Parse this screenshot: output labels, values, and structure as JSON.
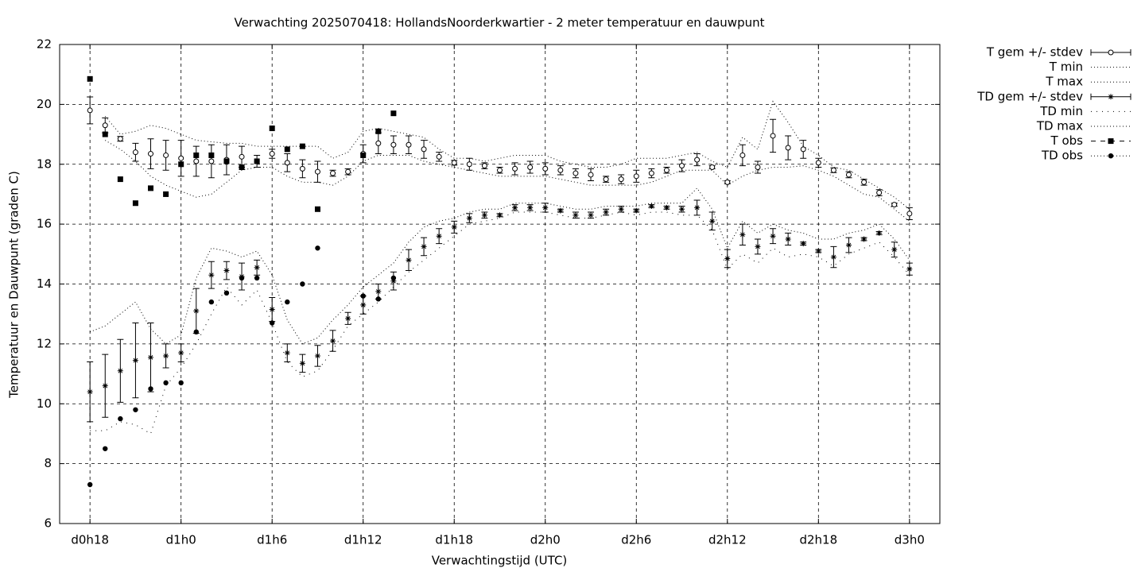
{
  "chart_data": {
    "type": "errorbar",
    "title": "Verwachting 2025070418: HollandsNoorderkwartier - 2 meter temperatuur en dauwpunt",
    "xlabel": "Verwachtingstijd (UTC)",
    "ylabel": "Temperatuur en Dauwpunt (graden C)",
    "xlim": [
      16,
      74
    ],
    "ylim": [
      6,
      22
    ],
    "xticks": [
      {
        "value": 18,
        "label": "d0h18"
      },
      {
        "value": 24,
        "label": "d1h0"
      },
      {
        "value": 30,
        "label": "d1h6"
      },
      {
        "value": 36,
        "label": "d1h12"
      },
      {
        "value": 42,
        "label": "d1h18"
      },
      {
        "value": 48,
        "label": "d2h0"
      },
      {
        "value": 54,
        "label": "d2h6"
      },
      {
        "value": 60,
        "label": "d2h12"
      },
      {
        "value": 66,
        "label": "d2h18"
      },
      {
        "value": 72,
        "label": "d3h0"
      }
    ],
    "yticks": [
      6,
      8,
      10,
      12,
      14,
      16,
      18,
      20,
      22
    ],
    "grid": true,
    "legend": "right-outside",
    "x": [
      18,
      19,
      20,
      21,
      22,
      23,
      24,
      25,
      26,
      27,
      28,
      29,
      30,
      31,
      32,
      33,
      34,
      35,
      36,
      37,
      38,
      39,
      40,
      41,
      42,
      43,
      44,
      45,
      46,
      47,
      48,
      49,
      50,
      51,
      52,
      53,
      54,
      55,
      56,
      57,
      58,
      59,
      60,
      61,
      62,
      63,
      64,
      65,
      66,
      67,
      68,
      69,
      70,
      71,
      72
    ],
    "series": [
      {
        "name": "T gem +/- stdev",
        "color": "#000000",
        "marker": "open-circle",
        "line": "none",
        "values": [
          19.8,
          19.3,
          18.85,
          18.4,
          18.35,
          18.3,
          18.2,
          18.1,
          18.1,
          18.15,
          18.25,
          18.1,
          18.35,
          18.05,
          17.85,
          17.75,
          17.7,
          17.75,
          18.35,
          18.7,
          18.65,
          18.65,
          18.5,
          18.25,
          18.05,
          18.0,
          17.95,
          17.8,
          17.85,
          17.9,
          17.85,
          17.8,
          17.7,
          17.65,
          17.5,
          17.5,
          17.6,
          17.7,
          17.8,
          17.95,
          18.15,
          17.9,
          17.4,
          18.3,
          17.9,
          18.95,
          18.55,
          18.5,
          18.05,
          17.8,
          17.65,
          17.4,
          17.05,
          16.65,
          16.35
        ],
        "errors": [
          0.45,
          0.25,
          0.08,
          0.3,
          0.5,
          0.5,
          0.6,
          0.5,
          0.55,
          0.5,
          0.35,
          0.2,
          0.15,
          0.3,
          0.3,
          0.35,
          0.1,
          0.1,
          0.3,
          0.35,
          0.3,
          0.3,
          0.3,
          0.15,
          0.08,
          0.2,
          0.1,
          0.1,
          0.2,
          0.2,
          0.2,
          0.15,
          0.15,
          0.2,
          0.1,
          0.15,
          0.2,
          0.15,
          0.1,
          0.2,
          0.2,
          0.05,
          0.05,
          0.35,
          0.2,
          0.55,
          0.4,
          0.3,
          0.15,
          0.08,
          0.1,
          0.1,
          0.1,
          0.05,
          0.2
        ]
      },
      {
        "name": "T min",
        "color": "#000000",
        "marker": "none",
        "line": "dotted",
        "values": [
          null,
          18.8,
          18.5,
          18.1,
          17.6,
          17.3,
          17.1,
          16.9,
          17.0,
          17.4,
          17.8,
          17.9,
          17.9,
          17.6,
          17.4,
          17.4,
          17.3,
          17.6,
          18.1,
          18.3,
          18.3,
          18.3,
          18.1,
          18.0,
          17.9,
          17.8,
          17.7,
          17.6,
          17.6,
          17.6,
          17.6,
          17.5,
          17.4,
          17.3,
          17.3,
          17.3,
          17.3,
          17.4,
          17.6,
          17.8,
          17.8,
          17.8,
          17.3,
          17.6,
          17.8,
          17.9,
          17.9,
          17.95,
          17.8,
          17.6,
          17.3,
          17.0,
          16.9,
          16.5,
          16.1
        ]
      },
      {
        "name": "T max",
        "color": "#000000",
        "marker": "none",
        "line": "dotted",
        "values": [
          null,
          19.6,
          19.0,
          19.1,
          19.3,
          19.2,
          19.0,
          18.8,
          18.75,
          18.7,
          18.7,
          18.6,
          18.6,
          18.6,
          18.6,
          18.6,
          18.2,
          18.4,
          19.1,
          19.2,
          19.1,
          19.0,
          18.9,
          18.5,
          18.2,
          18.2,
          18.1,
          18.2,
          18.3,
          18.3,
          18.3,
          18.1,
          18.0,
          17.9,
          17.9,
          18.0,
          18.2,
          18.2,
          18.2,
          18.3,
          18.4,
          18.1,
          17.9,
          18.9,
          18.5,
          20.1,
          19.4,
          18.6,
          18.3,
          17.9,
          17.8,
          17.5,
          17.2,
          16.9,
          16.5
        ]
      },
      {
        "name": "TD gem +/- stdev",
        "color": "#000000",
        "marker": "asterisk",
        "line": "none",
        "values": [
          10.4,
          10.6,
          11.1,
          11.45,
          11.55,
          11.6,
          11.7,
          13.1,
          14.3,
          14.45,
          14.25,
          14.55,
          13.15,
          11.7,
          11.35,
          11.6,
          12.1,
          12.85,
          13.3,
          13.75,
          14.1,
          14.8,
          15.25,
          15.6,
          15.9,
          16.2,
          16.3,
          16.3,
          16.55,
          16.55,
          16.55,
          16.45,
          16.3,
          16.3,
          16.4,
          16.5,
          16.45,
          16.6,
          16.55,
          16.5,
          16.55,
          16.1,
          14.85,
          15.65,
          15.25,
          15.6,
          15.5,
          15.35,
          15.1,
          14.9,
          15.3,
          15.5,
          15.7,
          15.15,
          14.5
        ],
        "errors": [
          1.0,
          1.05,
          1.05,
          1.25,
          1.15,
          0.4,
          0.3,
          0.75,
          0.45,
          0.3,
          0.45,
          0.25,
          0.4,
          0.3,
          0.3,
          0.35,
          0.35,
          0.2,
          0.3,
          0.25,
          0.3,
          0.35,
          0.3,
          0.25,
          0.2,
          0.15,
          0.1,
          0.05,
          0.1,
          0.1,
          0.15,
          0.05,
          0.1,
          0.1,
          0.1,
          0.1,
          0.05,
          0.05,
          0.05,
          0.1,
          0.25,
          0.3,
          0.3,
          0.35,
          0.25,
          0.25,
          0.2,
          0.05,
          0.05,
          0.35,
          0.25,
          0.05,
          0.05,
          0.25,
          0.2
        ]
      },
      {
        "name": "TD min",
        "color": "#000000",
        "marker": "none",
        "line": "sparse-dotted",
        "values": [
          9.1,
          9.1,
          9.4,
          9.3,
          9.0,
          10.6,
          11.2,
          12.0,
          13.0,
          13.9,
          13.3,
          13.8,
          12.7,
          11.4,
          10.9,
          11.1,
          11.8,
          12.6,
          13.0,
          13.4,
          13.9,
          14.4,
          14.8,
          15.2,
          15.6,
          16.0,
          16.1,
          16.2,
          16.4,
          16.4,
          16.4,
          16.3,
          16.2,
          16.2,
          16.3,
          16.4,
          16.3,
          16.4,
          16.4,
          16.3,
          16.3,
          15.8,
          14.5,
          15.0,
          14.7,
          15.2,
          14.9,
          15.0,
          14.9,
          14.6,
          15.0,
          15.2,
          15.4,
          14.9,
          14.3
        ]
      },
      {
        "name": "TD max",
        "color": "#000000",
        "marker": "none",
        "line": "dotted",
        "values": [
          12.4,
          12.6,
          13.0,
          13.4,
          12.5,
          12.0,
          12.3,
          14.2,
          15.2,
          15.1,
          14.9,
          15.1,
          14.3,
          12.8,
          12.0,
          12.2,
          12.8,
          13.3,
          13.9,
          14.3,
          14.7,
          15.4,
          15.9,
          16.1,
          16.2,
          16.4,
          16.5,
          16.5,
          16.7,
          16.7,
          16.7,
          16.6,
          16.5,
          16.5,
          16.6,
          16.6,
          16.6,
          16.7,
          16.7,
          16.7,
          17.2,
          16.5,
          15.2,
          16.1,
          15.7,
          16.0,
          15.8,
          15.7,
          15.5,
          15.5,
          15.7,
          15.8,
          16.0,
          15.5,
          14.8
        ]
      },
      {
        "name": "T obs",
        "color": "#000000",
        "marker": "filled-square",
        "line": "none",
        "legend_line": "dashed",
        "values": [
          20.85,
          19.0,
          17.5,
          16.7,
          17.2,
          17.0,
          18.0,
          18.3,
          18.3,
          18.1,
          17.9,
          18.1,
          19.2,
          18.5,
          18.6,
          16.5,
          null,
          null,
          18.3,
          19.1,
          19.7,
          null,
          null,
          null,
          null,
          null,
          null,
          null,
          null,
          null,
          null,
          null,
          null,
          null,
          null,
          null,
          null,
          null,
          null,
          null,
          null,
          null,
          null,
          null,
          null,
          null,
          null,
          null,
          null,
          null,
          null,
          null,
          null,
          null,
          null
        ]
      },
      {
        "name": "TD obs",
        "color": "#000000",
        "marker": "filled-circle",
        "line": "none",
        "legend_line": "dotted",
        "values": [
          7.3,
          8.5,
          9.5,
          9.8,
          10.5,
          10.7,
          10.7,
          12.4,
          13.4,
          13.7,
          14.2,
          14.2,
          12.7,
          13.4,
          14.0,
          15.2,
          null,
          null,
          13.6,
          13.5,
          14.2,
          null,
          null,
          null,
          null,
          null,
          null,
          null,
          null,
          null,
          null,
          null,
          null,
          null,
          null,
          null,
          null,
          null,
          null,
          null,
          null,
          null,
          null,
          null,
          null,
          null,
          null,
          null,
          null,
          null,
          null,
          null,
          null,
          null,
          null
        ]
      }
    ]
  }
}
